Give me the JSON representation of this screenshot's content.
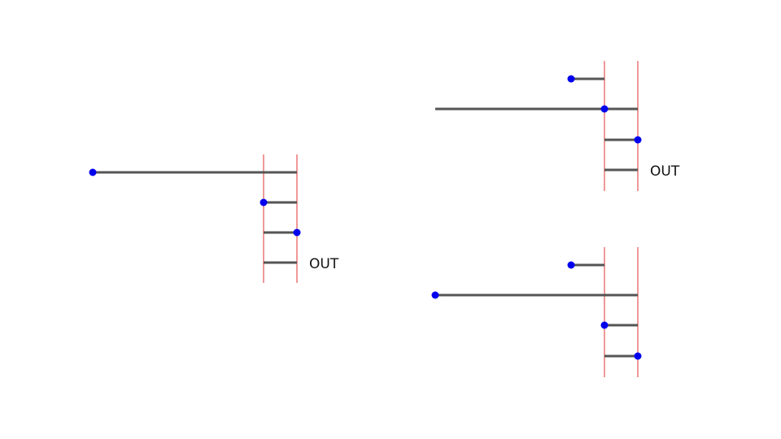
{
  "colors": {
    "wire": "#555555",
    "rail": "#e03030",
    "dot": "#0000ee",
    "background": "#ffffff"
  },
  "diagrams": [
    {
      "output_label": "OUT"
    },
    {
      "output_label": "OUT"
    },
    {
      "output_label": ""
    }
  ]
}
